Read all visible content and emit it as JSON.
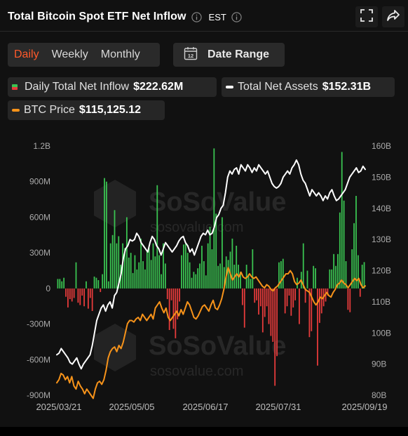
{
  "header": {
    "title": "Total Bitcoin Spot ETF Net Inflow",
    "timezone": "EST"
  },
  "tabs": [
    {
      "label": "Daily",
      "active": true
    },
    {
      "label": "Weekly",
      "active": false
    },
    {
      "label": "Monthly",
      "active": false
    }
  ],
  "date_range": {
    "label": "Date Range",
    "calendar_day": "12"
  },
  "legend": {
    "inflow": {
      "label": "Daily Total Net Inflow",
      "value": "$222.62M"
    },
    "assets": {
      "label": "Total Net Assets",
      "value": "$152.31B"
    },
    "btc": {
      "label": "BTC Price",
      "value": "$115,125.12"
    }
  },
  "watermark": {
    "brand": "SoSoValue",
    "url": "sosovalue.com"
  },
  "colors": {
    "positive": "#3ac451",
    "negative": "#e63b3b",
    "assets_line": "#ffffff",
    "btc_line": "#f7931a",
    "active_tab": "#ff5a2b"
  },
  "icons": {
    "info": "info-icon",
    "fullscreen": "fullscreen-icon",
    "share": "share-icon",
    "calendar": "calendar-icon"
  },
  "chart_data": {
    "type": "bar",
    "left_axis": {
      "ylim": [
        -900,
        1200
      ],
      "unit": "M",
      "ticks": [
        "1.2B",
        "900M",
        "600M",
        "300M",
        "0",
        "-300M",
        "-600M",
        "-900M"
      ]
    },
    "right_axis": {
      "ylim": [
        80,
        160
      ],
      "unit": "B",
      "ticks": [
        "160B",
        "150B",
        "140B",
        "130B",
        "120B",
        "110B",
        "100B",
        "90B",
        "80B"
      ]
    },
    "x_ticks": [
      "2025/03/21",
      "2025/05/05",
      "2025/06/17",
      "2025/07/31",
      "2025/09/19"
    ],
    "x_range": [
      "2025/03/21",
      "2025/09/19"
    ],
    "series": [
      {
        "name": "Daily Total Net Inflow",
        "kind": "bar",
        "axis": "left",
        "values": [
          80,
          80,
          60,
          90,
          -70,
          -160,
          -90,
          -110,
          -80,
          220,
          -120,
          -140,
          -60,
          -150,
          60,
          -170,
          -80,
          -190,
          100,
          90,
          70,
          -30,
          120,
          930,
          900,
          60,
          380,
          450,
          660,
          380,
          440,
          200,
          380,
          340,
          600,
          260,
          300,
          130,
          280,
          160,
          220,
          420,
          230,
          160,
          320,
          340,
          240,
          380,
          270,
          870,
          280,
          120,
          380,
          210,
          -90,
          -350,
          -100,
          -340,
          -420,
          -260,
          -110,
          280,
          370,
          380,
          300,
          220,
          90,
          140,
          120,
          170,
          210,
          360,
          230,
          110,
          380,
          520,
          330,
          1180,
          630,
          190,
          210,
          600,
          180,
          270,
          240,
          310,
          420,
          200,
          360,
          200,
          140,
          -140,
          -330,
          200,
          120,
          80,
          330,
          -120,
          -100,
          -220,
          -150,
          -370,
          -240,
          -150,
          -300,
          -400,
          -450,
          -820,
          -570,
          220,
          230,
          250,
          -210,
          -150,
          -60,
          -230,
          -160,
          -100,
          90,
          -300,
          140,
          380,
          -120,
          150,
          -410,
          -360,
          190,
          170,
          -650,
          -290,
          -210,
          -150,
          -110,
          -60,
          160,
          160,
          290,
          190,
          290,
          640,
          1150,
          740,
          230,
          -180,
          -200,
          330,
          550,
          780,
          280,
          -70,
          200,
          222
        ]
      },
      {
        "name": "Total Net Assets",
        "kind": "line",
        "axis": "right",
        "values": [
          93,
          93.5,
          95,
          94,
          93,
          92,
          90.5,
          90,
          91,
          92,
          90,
          88.5,
          90,
          91,
          92,
          93,
          96,
          100,
          104,
          106,
          108,
          109,
          107,
          109,
          110,
          108,
          112,
          113,
          116,
          119,
          124,
          127,
          128,
          130,
          129.5,
          130,
          132,
          131,
          129,
          128,
          127,
          126,
          129,
          131,
          130,
          128,
          127,
          125,
          127,
          129,
          128,
          127,
          126,
          127,
          128,
          129.5,
          130.5,
          131,
          129,
          128,
          126,
          127,
          125,
          127,
          129,
          131,
          132,
          131.5,
          133,
          131.5,
          132,
          134,
          137,
          138,
          140,
          141,
          145,
          150,
          152,
          151,
          152.5,
          153,
          151,
          154,
          153,
          152,
          154,
          153,
          151.5,
          153,
          152,
          154,
          153,
          152,
          151,
          152,
          150,
          148,
          147,
          146.5,
          147,
          148,
          150,
          151,
          152,
          151,
          153,
          154,
          155.5,
          154,
          151,
          149,
          148,
          146,
          144,
          146,
          145,
          144,
          145,
          144,
          142.5,
          144,
          143,
          145,
          146,
          144,
          142.5,
          143,
          144,
          145,
          146,
          148,
          150,
          151,
          152,
          153,
          151.5,
          152,
          153.5,
          152.5
        ]
      },
      {
        "name": "BTC Price",
        "kind": "line",
        "axis": "right",
        "values": [
          84,
          85,
          87,
          86.5,
          85,
          86,
          84,
          86,
          83,
          82,
          84.5,
          83,
          82,
          80.5,
          82,
          81,
          80,
          79,
          82,
          84,
          84.5,
          83.5,
          85,
          88,
          92,
          94,
          95,
          95.5,
          94,
          96,
          95,
          97,
          100,
          103,
          104,
          104,
          103.5,
          104.5,
          105,
          104,
          106,
          105,
          104,
          105,
          106,
          104.5,
          108,
          109,
          110,
          108,
          106.5,
          108,
          105,
          104,
          105,
          106,
          107,
          105.5,
          107.5,
          106,
          108,
          110,
          109,
          107,
          105,
          104.5,
          105.5,
          107,
          108.5,
          109,
          108,
          107,
          109,
          110.5,
          108,
          107.5,
          109,
          111,
          114,
          118,
          121,
          119,
          117,
          118,
          119,
          118,
          119.5,
          118,
          117.5,
          118,
          119,
          118,
          117.5,
          118,
          117,
          116,
          115,
          114.5,
          115.5,
          115,
          114,
          113.5,
          114.5,
          115,
          116,
          117,
          118,
          119,
          119,
          120,
          119,
          116.5,
          115.5,
          116,
          117,
          115.5,
          114,
          113.5,
          113,
          111.5,
          110,
          109,
          110,
          111.5,
          111,
          112,
          113,
          112,
          111.5,
          113,
          114,
          115.5,
          116,
          117,
          116,
          115.5,
          114.5,
          115.5,
          116.5,
          117.5,
          116.8,
          117.5,
          115.5,
          114.5,
          115.1
        ]
      }
    ],
    "grid": false,
    "legend_placement": "top"
  }
}
